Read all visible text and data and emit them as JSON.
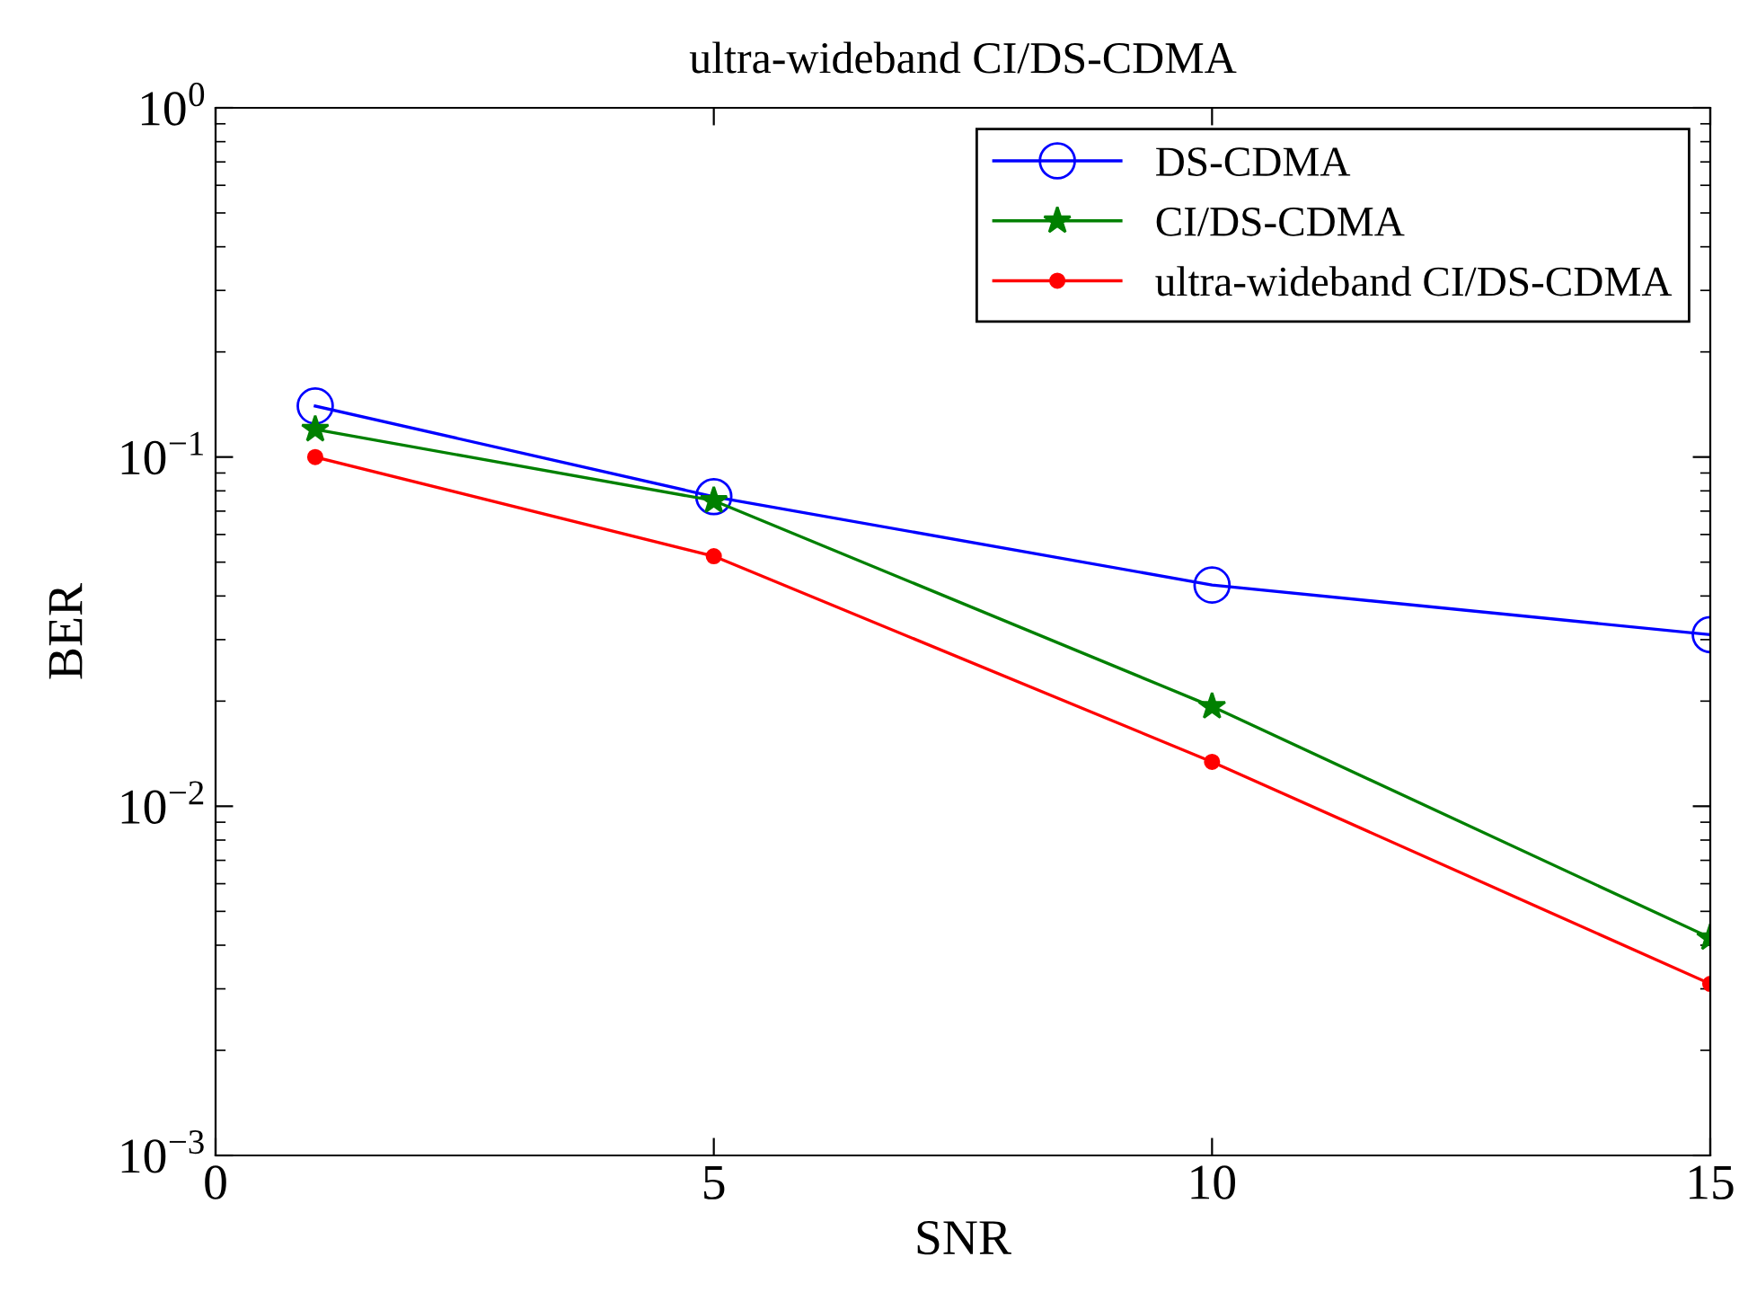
{
  "chart_data": {
    "type": "line",
    "title": "ultra-wideband CI/DS-CDMA",
    "xlabel": "SNR",
    "ylabel": "BER",
    "x": [
      1,
      5,
      10,
      15
    ],
    "series": [
      {
        "name": "DS-CDMA",
        "color": "#0000ff",
        "marker": "circle",
        "values": [
          0.14,
          0.077,
          0.043,
          0.031
        ]
      },
      {
        "name": "CI/DS-CDMA",
        "color": "#008000",
        "marker": "star",
        "values": [
          0.12,
          0.075,
          0.0193,
          0.0042
        ]
      },
      {
        "name": "ultra-wideband CI/DS-CDMA",
        "color": "#ff0000",
        "marker": "dot",
        "values": [
          0.1,
          0.052,
          0.0134,
          0.0031
        ]
      }
    ],
    "log": "y",
    "xlim": [
      0,
      15
    ],
    "ylim": [
      0.001,
      1
    ],
    "xticks": [
      0,
      5,
      10,
      15
    ],
    "yticks": [
      {
        "value": 0.001,
        "label": "10$^{−3}$"
      },
      {
        "value": 0.01,
        "label": "10$^{−2}$"
      },
      {
        "value": 0.1,
        "label": "10$^{−1}$"
      },
      {
        "value": 1,
        "label": "10$^{0}$"
      }
    ],
    "grid": false,
    "legend": "top right",
    "line_style": "solid"
  }
}
